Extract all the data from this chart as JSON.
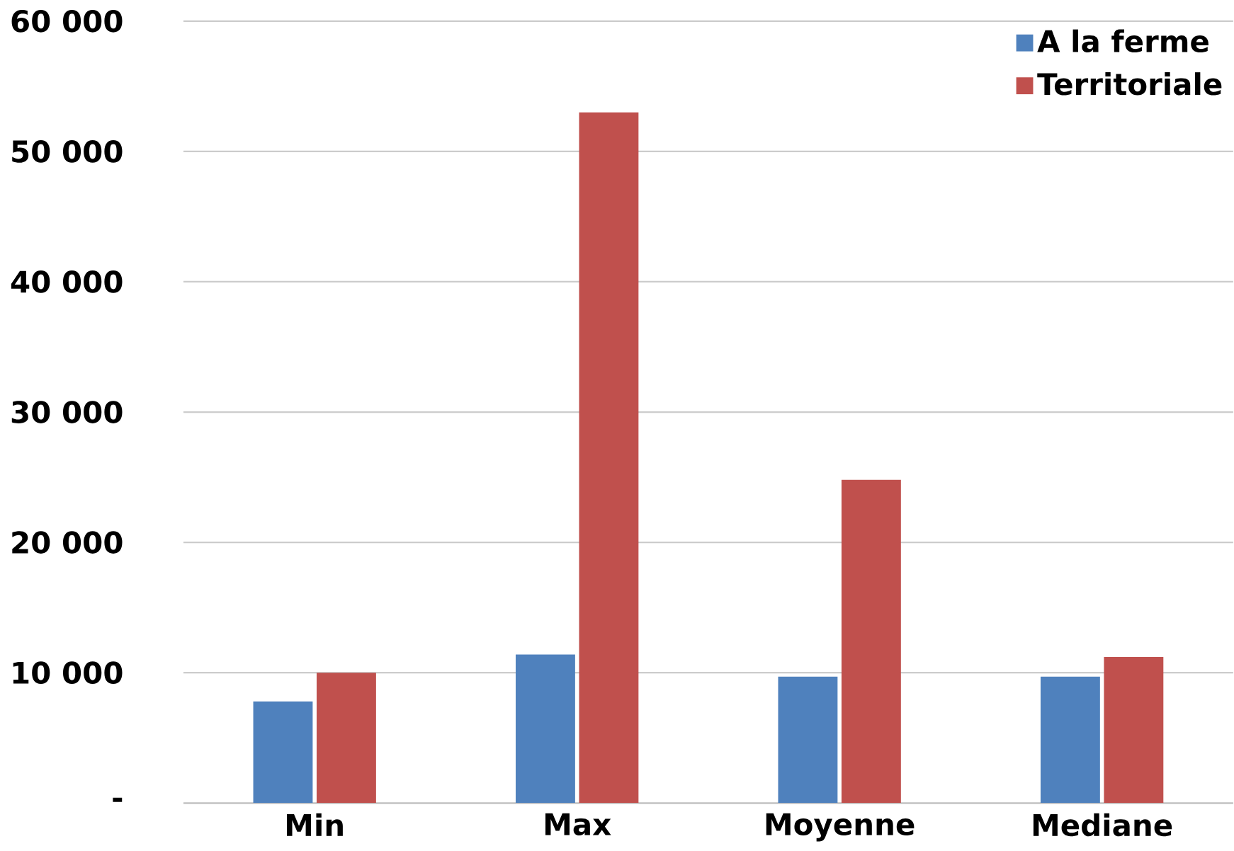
{
  "chart_data": {
    "type": "bar",
    "categories": [
      "Min",
      "Max",
      "Moyenne",
      "Mediane"
    ],
    "series": [
      {
        "name": "A la ferme",
        "color": "#4f81bd",
        "values": [
          7800,
          11400,
          9700,
          9700
        ]
      },
      {
        "name": "Territoriale",
        "color": "#c0504d",
        "values": [
          10000,
          53000,
          24800,
          11200
        ]
      }
    ],
    "ylim": [
      0,
      60000
    ],
    "yticks": [
      {
        "value": 0,
        "label": "-"
      },
      {
        "value": 10000,
        "label": "10 000"
      },
      {
        "value": 20000,
        "label": "20 000"
      },
      {
        "value": 30000,
        "label": "30 000"
      },
      {
        "value": 40000,
        "label": "40 000"
      },
      {
        "value": 50000,
        "label": "50 000"
      },
      {
        "value": 60000,
        "label": "60 000"
      }
    ],
    "grid": "y",
    "legend": "top right"
  }
}
